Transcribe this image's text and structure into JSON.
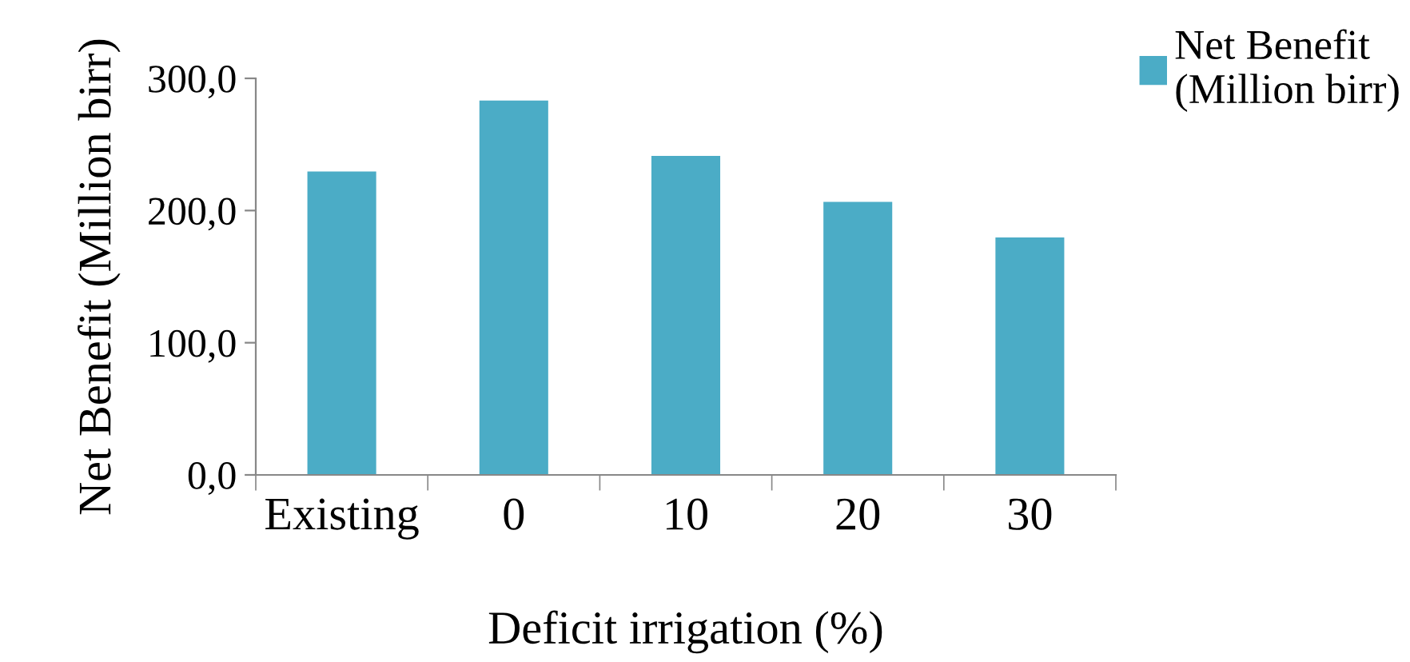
{
  "chart_data": {
    "type": "bar",
    "xlabel": "Deficit irrigation (%)",
    "ylabel": "Net Benefit (Million birr)",
    "categories": [
      "Existing",
      "0",
      "10",
      "20",
      "30"
    ],
    "series": [
      {
        "name": "Net Benefit\n(Million birr)",
        "color": "#4bacc6",
        "values": [
          229.6,
          283.2,
          241.3,
          206.6,
          179.6
        ]
      }
    ],
    "ylim": [
      0,
      300
    ],
    "yticks": [
      {
        "value": 0,
        "label": "0,0"
      },
      {
        "value": 100,
        "label": "100,0"
      },
      {
        "value": 200,
        "label": "200,0"
      },
      {
        "value": 300,
        "label": "300,0"
      }
    ],
    "grid": false,
    "legend": "top right"
  }
}
